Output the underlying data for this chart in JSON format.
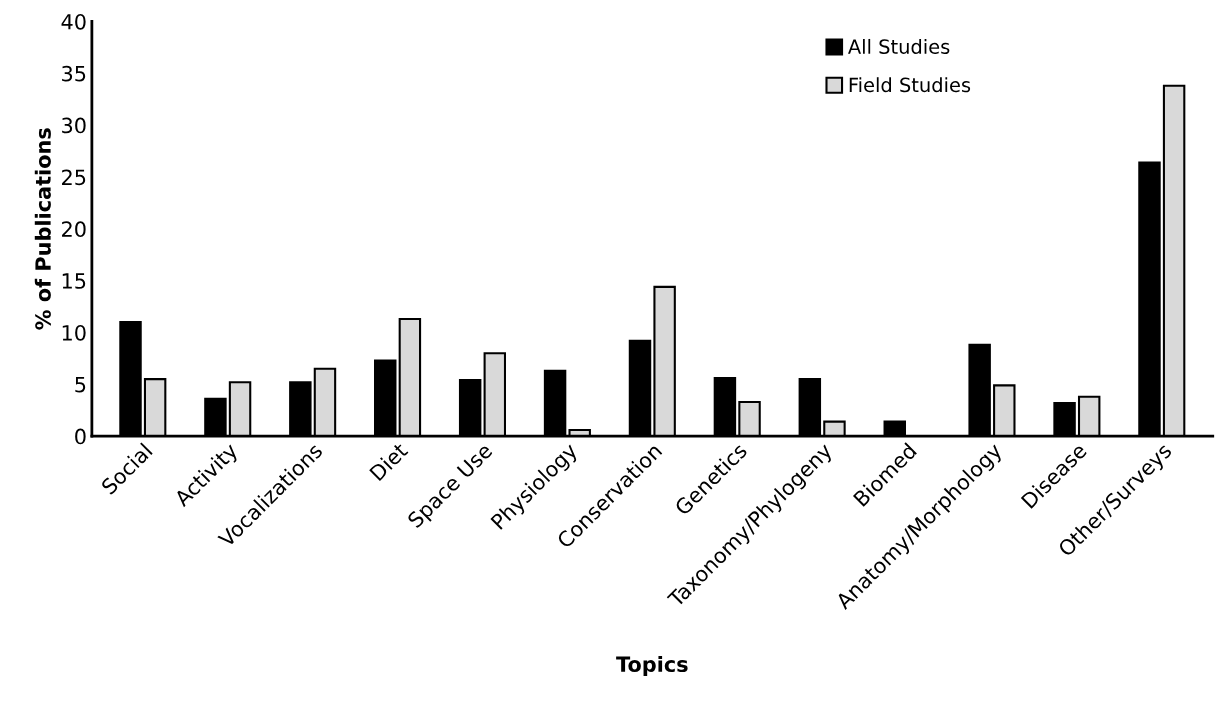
{
  "chart_data": {
    "type": "bar",
    "xlabel": "Topics",
    "ylabel": "% of Publications",
    "categories": [
      "Social",
      "Activity",
      "Vocalizations",
      "Diet",
      "Space Use",
      "Physiology",
      "Conservation",
      "Genetics",
      "Taxonomy/Phylogeny",
      "Biomed",
      "Anatomy/Morphology",
      "Disease",
      "Other/Surveys"
    ],
    "series": [
      {
        "name": "All Studies",
        "color": "#000000",
        "values": [
          11.0,
          3.6,
          5.2,
          7.3,
          5.4,
          6.3,
          9.2,
          5.6,
          5.5,
          1.4,
          8.8,
          3.2,
          26.4
        ]
      },
      {
        "name": "Field Studies",
        "color": "#d9d9d9",
        "values": [
          5.5,
          5.2,
          6.5,
          11.3,
          8.0,
          0.6,
          14.4,
          3.3,
          1.4,
          null,
          4.9,
          3.8,
          33.8
        ]
      }
    ],
    "ylim": [
      0,
      40
    ],
    "yticks": [
      0,
      5,
      10,
      15,
      20,
      25,
      30,
      35,
      40
    ],
    "grid": false,
    "legend": "top right"
  }
}
